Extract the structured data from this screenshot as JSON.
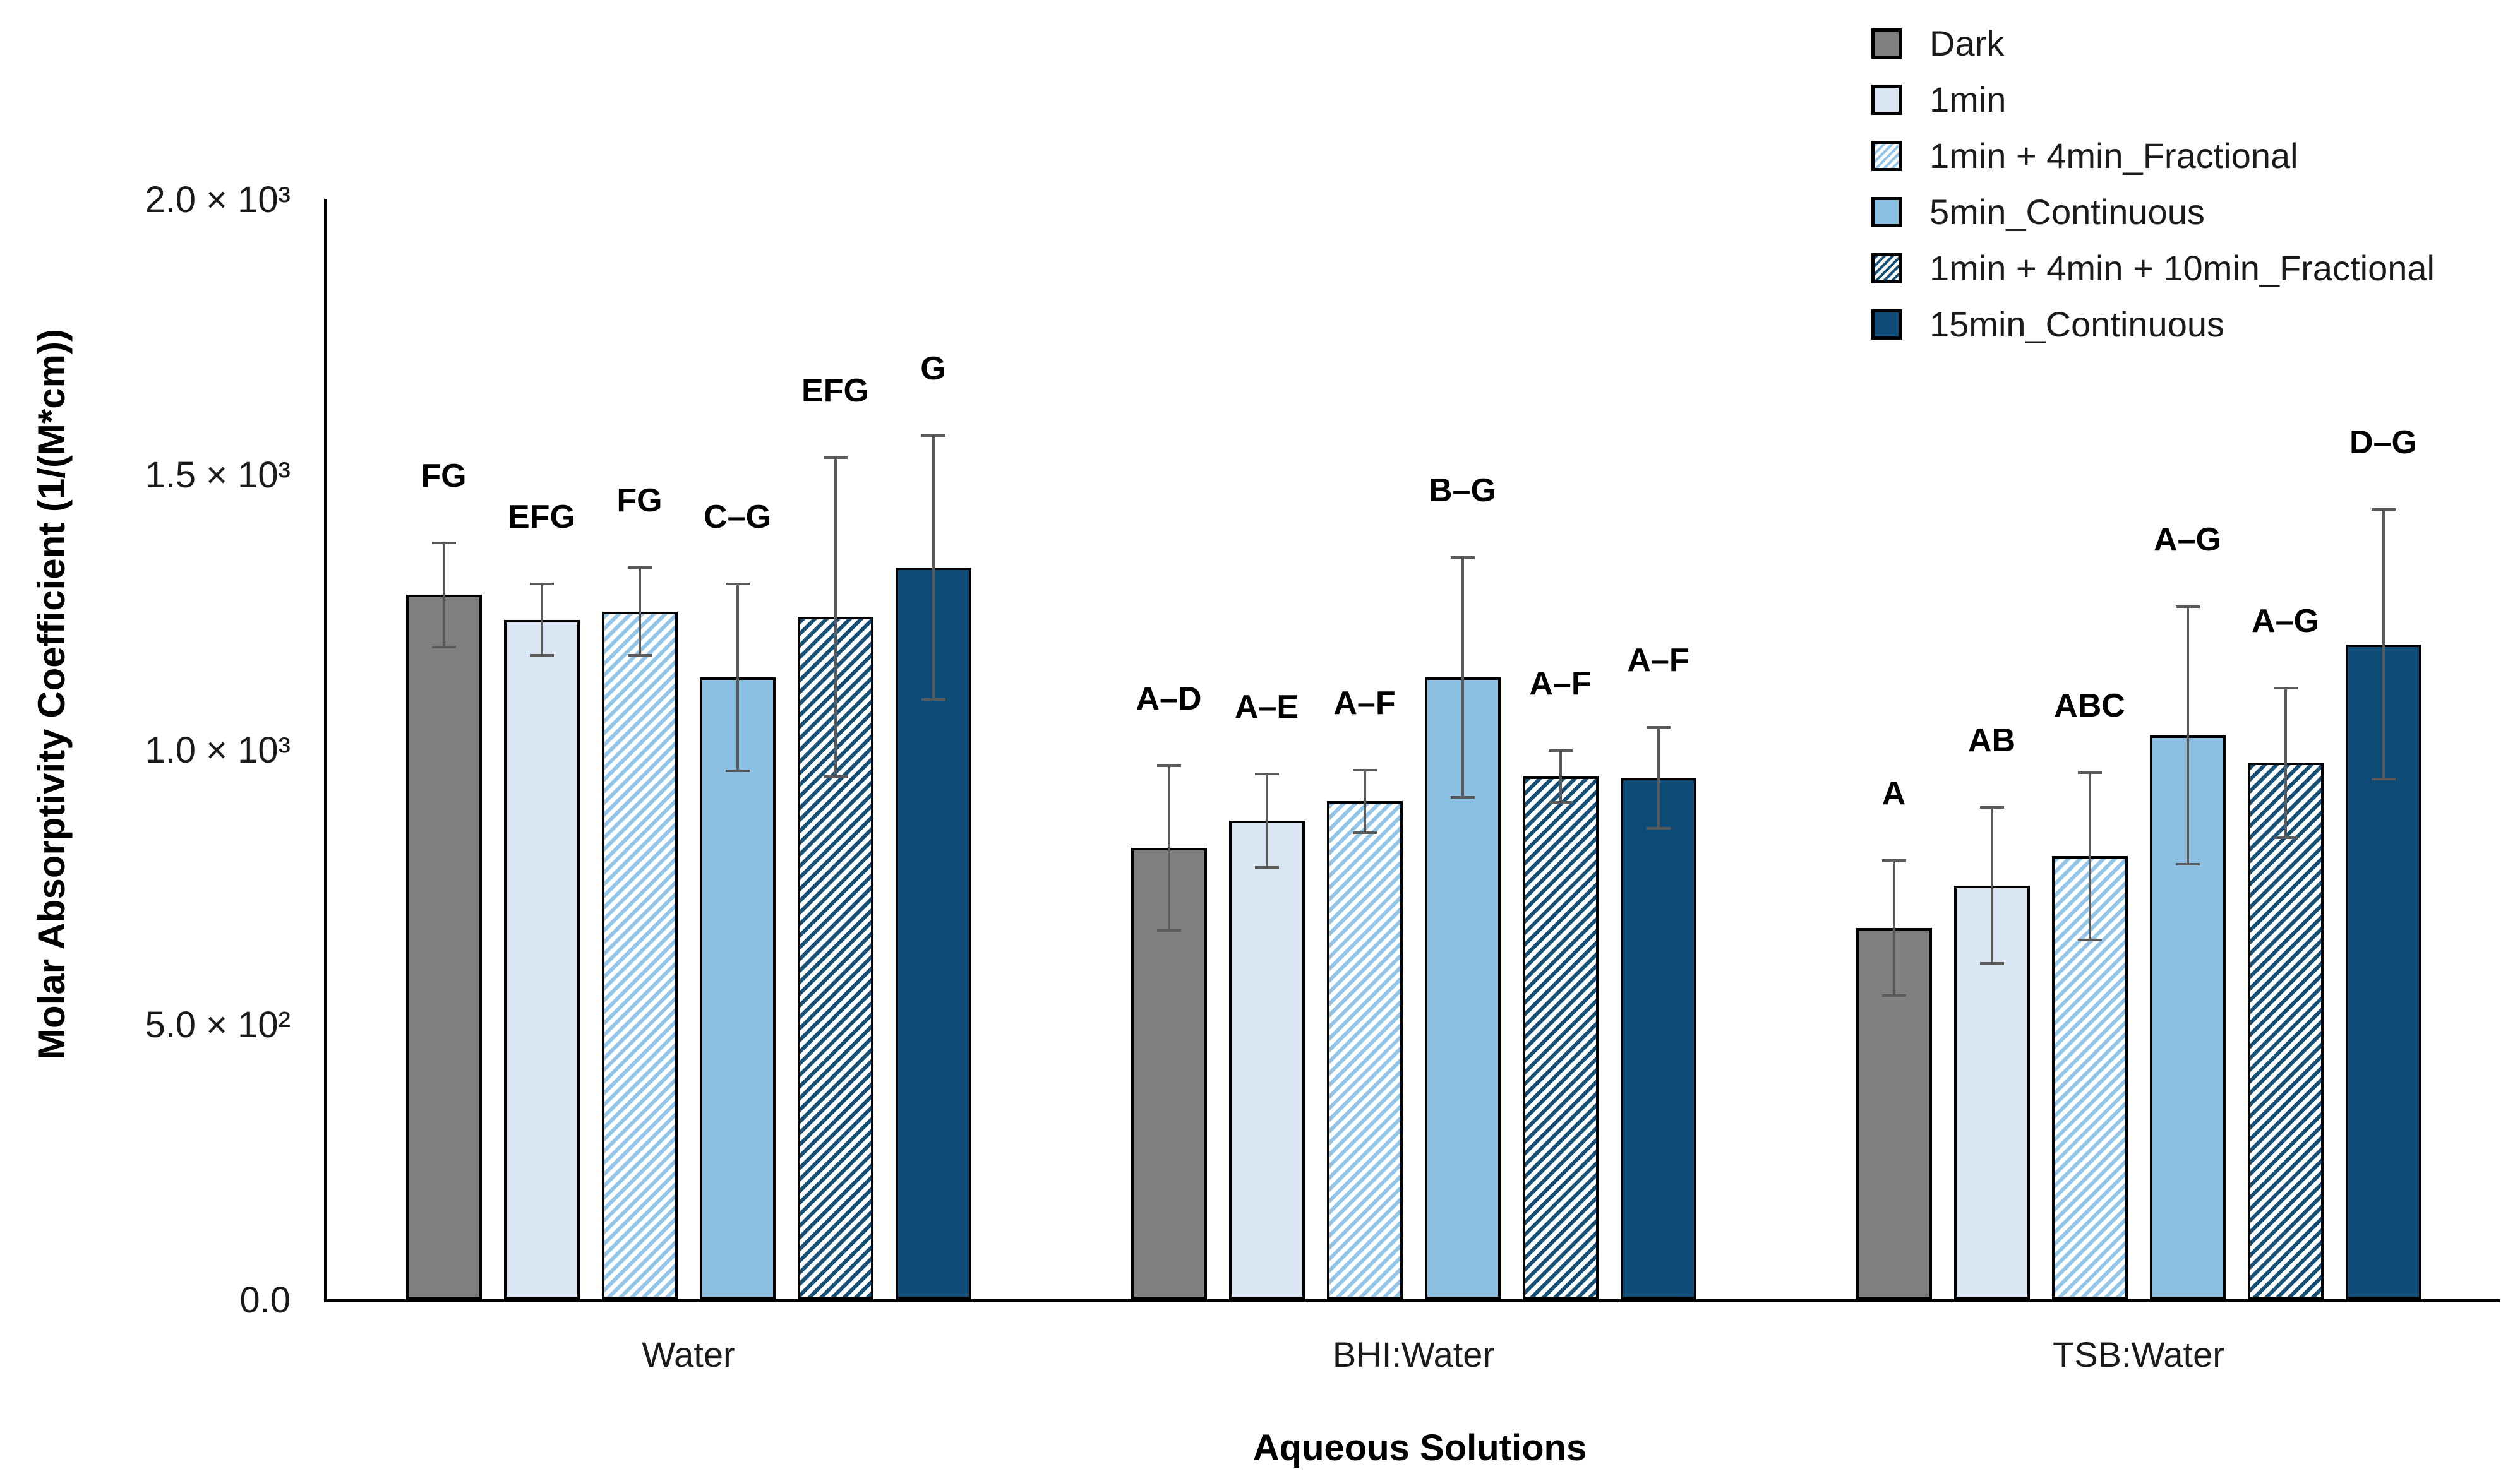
{
  "chart_data": {
    "type": "bar",
    "title": "",
    "xlabel": "Aqueous Solutions",
    "ylabel": "Molar Absorptivity Coefficient (1/(M*cm))",
    "ylim": [
      0,
      2000
    ],
    "grid": false,
    "legend_position": "top-right",
    "error_bar_color": "#595959",
    "bar_border_color": "#000000",
    "yticks": [
      {
        "value": 0,
        "label": "0.0"
      },
      {
        "value": 500,
        "label": "5.0 × 10²"
      },
      {
        "value": 1000,
        "label": "1.0 × 10³"
      },
      {
        "value": 1500,
        "label": "1.5 × 10³"
      },
      {
        "value": 2000,
        "label": "2.0 × 10³"
      }
    ],
    "categories": [
      "Water",
      "BHI:Water",
      "TSB:Water"
    ],
    "series": [
      {
        "name": "Dark",
        "fill": "#7f7f7f",
        "pattern": "solid",
        "values": [
          1280,
          820,
          675
        ],
        "errors": [
          95,
          150,
          123
        ],
        "letters": [
          "FG",
          "A–D",
          "A"
        ]
      },
      {
        "name": "1min",
        "fill": "#d9e5f2",
        "pattern": "solid",
        "values": [
          1235,
          870,
          752
        ],
        "errors": [
          65,
          85,
          142
        ],
        "letters": [
          "EFG",
          "A–E",
          "AB"
        ]
      },
      {
        "name": "1min + 4min_Fractional",
        "fill": "#92c5ea",
        "pattern": "hatch",
        "values": [
          1250,
          905,
          805
        ],
        "errors": [
          80,
          57,
          152
        ],
        "letters": [
          "FG",
          "A–F",
          "ABC"
        ]
      },
      {
        "name": "5min_Continuous",
        "fill": "#8cc0e3",
        "pattern": "solid",
        "values": [
          1130,
          1130,
          1025
        ],
        "errors": [
          170,
          218,
          234
        ],
        "letters": [
          "C–G",
          "B–G",
          "A–G"
        ]
      },
      {
        "name": "1min + 4min + 10min_Fractional",
        "fill": "#155079",
        "pattern": "hatch",
        "values": [
          1240,
          950,
          975
        ],
        "errors": [
          290,
          47,
          136
        ],
        "letters": [
          "EFG",
          "A–F",
          "A–G"
        ]
      },
      {
        "name": "15min_Continuous",
        "fill": "#0e4b77",
        "pattern": "solid",
        "values": [
          1330,
          948,
          1190
        ],
        "errors": [
          240,
          92,
          245
        ],
        "letters": [
          "G",
          "A–F",
          "D–G"
        ]
      }
    ]
  }
}
